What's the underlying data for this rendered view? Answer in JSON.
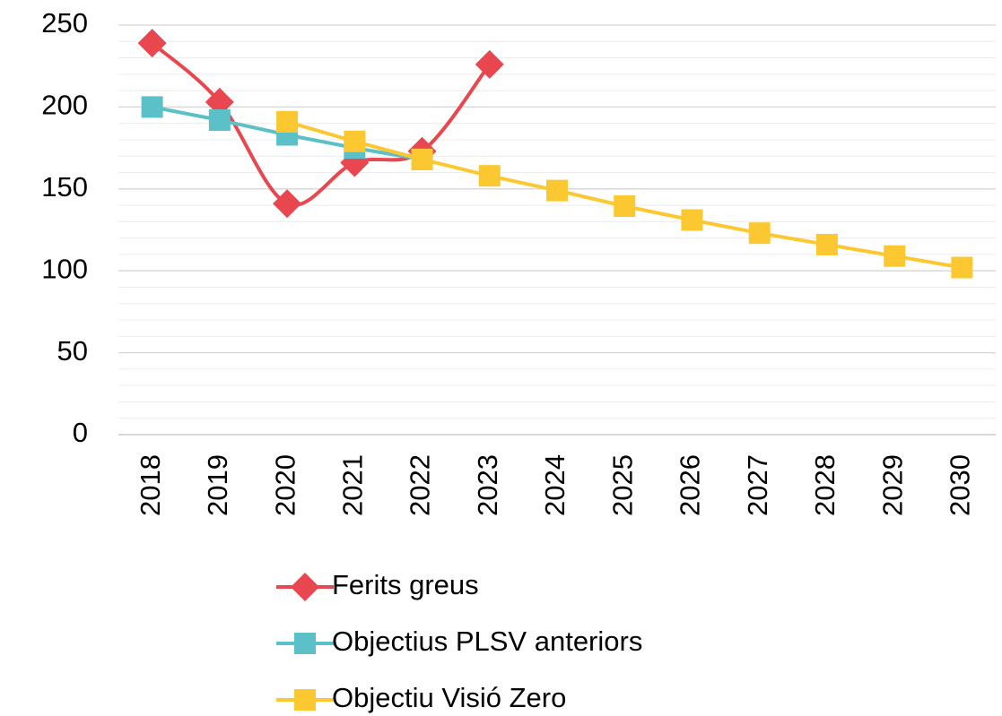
{
  "chart_data": {
    "type": "line",
    "categories": [
      "2018",
      "2019",
      "2020",
      "2021",
      "2022",
      "2023",
      "2024",
      "2025",
      "2026",
      "2027",
      "2028",
      "2029",
      "2030"
    ],
    "series": [
      {
        "name": "Ferits greus",
        "color": "#e8474f",
        "marker": "diamond",
        "smooth": true,
        "values": [
          239,
          203,
          141,
          166,
          173,
          226,
          null,
          null,
          null,
          null,
          null,
          null,
          null
        ]
      },
      {
        "name": "Objectius PLSV anteriors",
        "color": "#5bc0c8",
        "marker": "square",
        "smooth": false,
        "values": [
          200,
          192,
          183,
          175,
          168,
          null,
          null,
          null,
          null,
          null,
          null,
          null,
          null
        ]
      },
      {
        "name": "Objectiu Visió Zero",
        "color": "#fcc832",
        "marker": "square",
        "smooth": false,
        "values": [
          null,
          null,
          191,
          179,
          168,
          158,
          149,
          139.5,
          131,
          123,
          116,
          109,
          102
        ]
      }
    ],
    "ylim": [
      0,
      250
    ],
    "yticks": [
      0,
      50,
      100,
      150,
      200,
      250
    ],
    "minor_yticks": [
      10,
      20,
      30,
      40,
      60,
      70,
      80,
      90,
      110,
      120,
      130,
      140,
      160,
      170,
      180,
      190,
      210,
      220,
      230,
      240
    ],
    "grid": true,
    "legend": "bottom"
  }
}
